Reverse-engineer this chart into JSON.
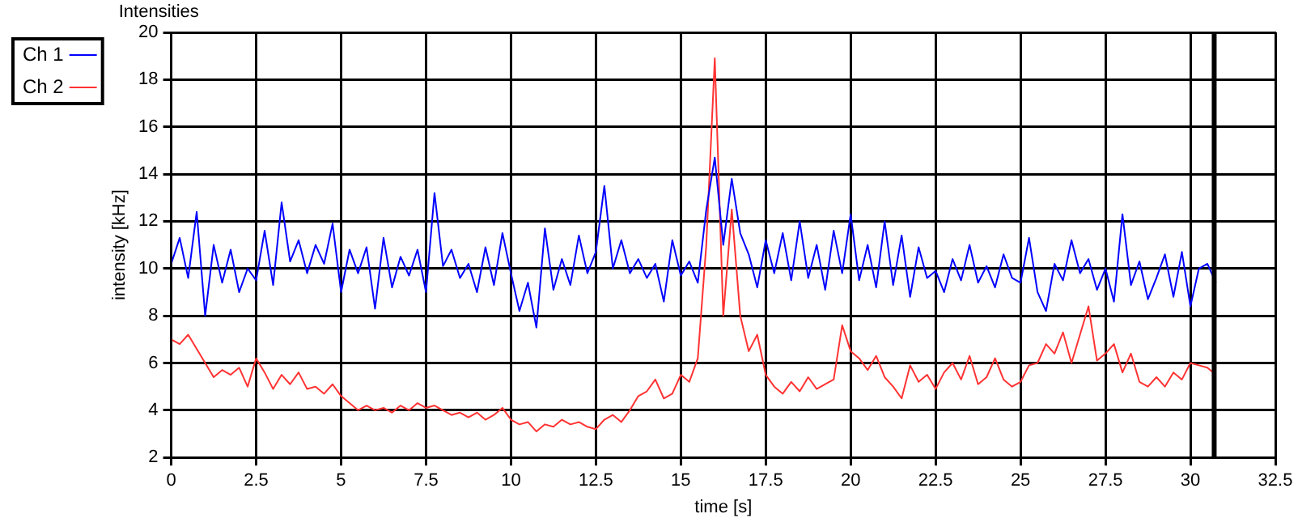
{
  "chart_data": {
    "type": "line",
    "title": "Intensities",
    "xlabel": "time [s]",
    "ylabel": "intensity [kHz]",
    "x": [
      0,
      0.25,
      0.5,
      0.75,
      1,
      1.25,
      1.5,
      1.75,
      2,
      2.25,
      2.5,
      2.75,
      3,
      3.25,
      3.5,
      3.75,
      4,
      4.25,
      4.5,
      4.75,
      5,
      5.25,
      5.5,
      5.75,
      6,
      6.25,
      6.5,
      6.75,
      7,
      7.25,
      7.5,
      7.75,
      8,
      8.25,
      8.5,
      8.75,
      9,
      9.25,
      9.5,
      9.75,
      10,
      10.25,
      10.5,
      10.75,
      11,
      11.25,
      11.5,
      11.75,
      12,
      12.25,
      12.5,
      12.75,
      13,
      13.25,
      13.5,
      13.75,
      14,
      14.25,
      14.5,
      14.75,
      15,
      15.25,
      15.5,
      15.75,
      16,
      16.25,
      16.5,
      16.75,
      17,
      17.25,
      17.5,
      17.75,
      18,
      18.25,
      18.5,
      18.75,
      19,
      19.25,
      19.5,
      19.75,
      20,
      20.25,
      20.5,
      20.75,
      21,
      21.25,
      21.5,
      21.75,
      22,
      22.25,
      22.5,
      22.75,
      23,
      23.25,
      23.5,
      23.75,
      24,
      24.25,
      24.5,
      24.75,
      25,
      25.25,
      25.5,
      25.75,
      26,
      26.25,
      26.5,
      26.75,
      27,
      27.25,
      27.5,
      27.75,
      28,
      28.25,
      28.5,
      28.75,
      29,
      29.25,
      29.5,
      29.75,
      30,
      30.25,
      30.5,
      30.75
    ],
    "series": [
      {
        "name": "Ch 1",
        "color": "#0000ff",
        "values": [
          10.2,
          11.3,
          9.6,
          12.4,
          8.0,
          11.0,
          9.4,
          10.8,
          9.0,
          10.0,
          9.5,
          11.6,
          9.3,
          12.8,
          10.3,
          11.2,
          9.8,
          11.0,
          10.2,
          11.9,
          9.0,
          10.8,
          9.8,
          10.9,
          8.3,
          11.3,
          9.2,
          10.5,
          9.7,
          10.8,
          9.0,
          13.2,
          10.1,
          10.8,
          9.6,
          10.2,
          9.0,
          10.9,
          9.3,
          11.5,
          9.8,
          8.2,
          9.4,
          7.5,
          11.7,
          9.1,
          10.4,
          9.3,
          11.4,
          9.8,
          10.7,
          13.5,
          10.0,
          11.2,
          9.8,
          10.4,
          9.6,
          10.2,
          8.6,
          11.2,
          9.7,
          10.3,
          9.4,
          12.5,
          14.7,
          11.0,
          13.8,
          11.5,
          10.6,
          9.2,
          11.2,
          9.8,
          11.5,
          9.5,
          12.0,
          9.6,
          11.0,
          9.1,
          11.6,
          9.8,
          12.3,
          9.5,
          11.0,
          9.2,
          12.0,
          9.3,
          11.4,
          8.8,
          10.9,
          9.6,
          9.9,
          9.0,
          10.4,
          9.5,
          11.0,
          9.4,
          10.1,
          9.2,
          10.6,
          9.6,
          9.4,
          11.3,
          9.0,
          8.2,
          10.2,
          9.5,
          11.2,
          9.8,
          10.4,
          9.1,
          10.0,
          8.6,
          12.3,
          9.3,
          10.3,
          8.7,
          9.6,
          10.6,
          8.8,
          10.7,
          8.4,
          10.0,
          10.2,
          9.4
        ]
      },
      {
        "name": "Ch 2",
        "color": "#ff3333",
        "values": [
          7.0,
          6.8,
          7.2,
          6.6,
          6.0,
          5.4,
          5.7,
          5.5,
          5.8,
          5.0,
          6.2,
          5.6,
          4.9,
          5.5,
          5.1,
          5.6,
          4.9,
          5.0,
          4.7,
          5.1,
          4.6,
          4.3,
          4.0,
          4.2,
          4.0,
          4.1,
          3.9,
          4.2,
          4.0,
          4.3,
          4.1,
          4.2,
          4.0,
          3.8,
          3.9,
          3.7,
          3.9,
          3.6,
          3.8,
          4.1,
          3.6,
          3.4,
          3.5,
          3.1,
          3.4,
          3.3,
          3.6,
          3.4,
          3.5,
          3.3,
          3.2,
          3.6,
          3.8,
          3.5,
          4.0,
          4.6,
          4.8,
          5.3,
          4.5,
          4.7,
          5.5,
          5.2,
          6.2,
          11.0,
          18.9,
          8.0,
          12.5,
          8.0,
          6.5,
          7.2,
          5.5,
          5.0,
          4.7,
          5.2,
          4.8,
          5.4,
          4.9,
          5.1,
          5.3,
          7.6,
          6.5,
          6.2,
          5.7,
          6.3,
          5.4,
          5.0,
          4.5,
          5.9,
          5.2,
          5.5,
          4.9,
          5.6,
          6.0,
          5.3,
          6.3,
          5.1,
          5.4,
          6.2,
          5.3,
          5.0,
          5.2,
          5.9,
          6.0,
          6.8,
          6.4,
          7.3,
          6.0,
          7.2,
          8.4,
          6.1,
          6.4,
          6.8,
          5.6,
          6.4,
          5.2,
          5.0,
          5.4,
          5.0,
          5.6,
          5.3,
          6.0,
          5.9,
          5.8,
          5.5
        ]
      }
    ],
    "xlim": [
      0,
      32.5
    ],
    "xticks": [
      0,
      2.5,
      5,
      7.5,
      10,
      12.5,
      15,
      17.5,
      20,
      22.5,
      25,
      27.5,
      30,
      32.5
    ],
    "ylim": [
      2,
      20
    ],
    "yticks": [
      2,
      4,
      6,
      8,
      10,
      12,
      14,
      16,
      18,
      20
    ],
    "ref_lines": [
      {
        "axis": "x",
        "value": 30.7,
        "color": "#000000"
      }
    ],
    "grid": true,
    "legend": "top left",
    "marker": "none",
    "line_style": "solid"
  }
}
